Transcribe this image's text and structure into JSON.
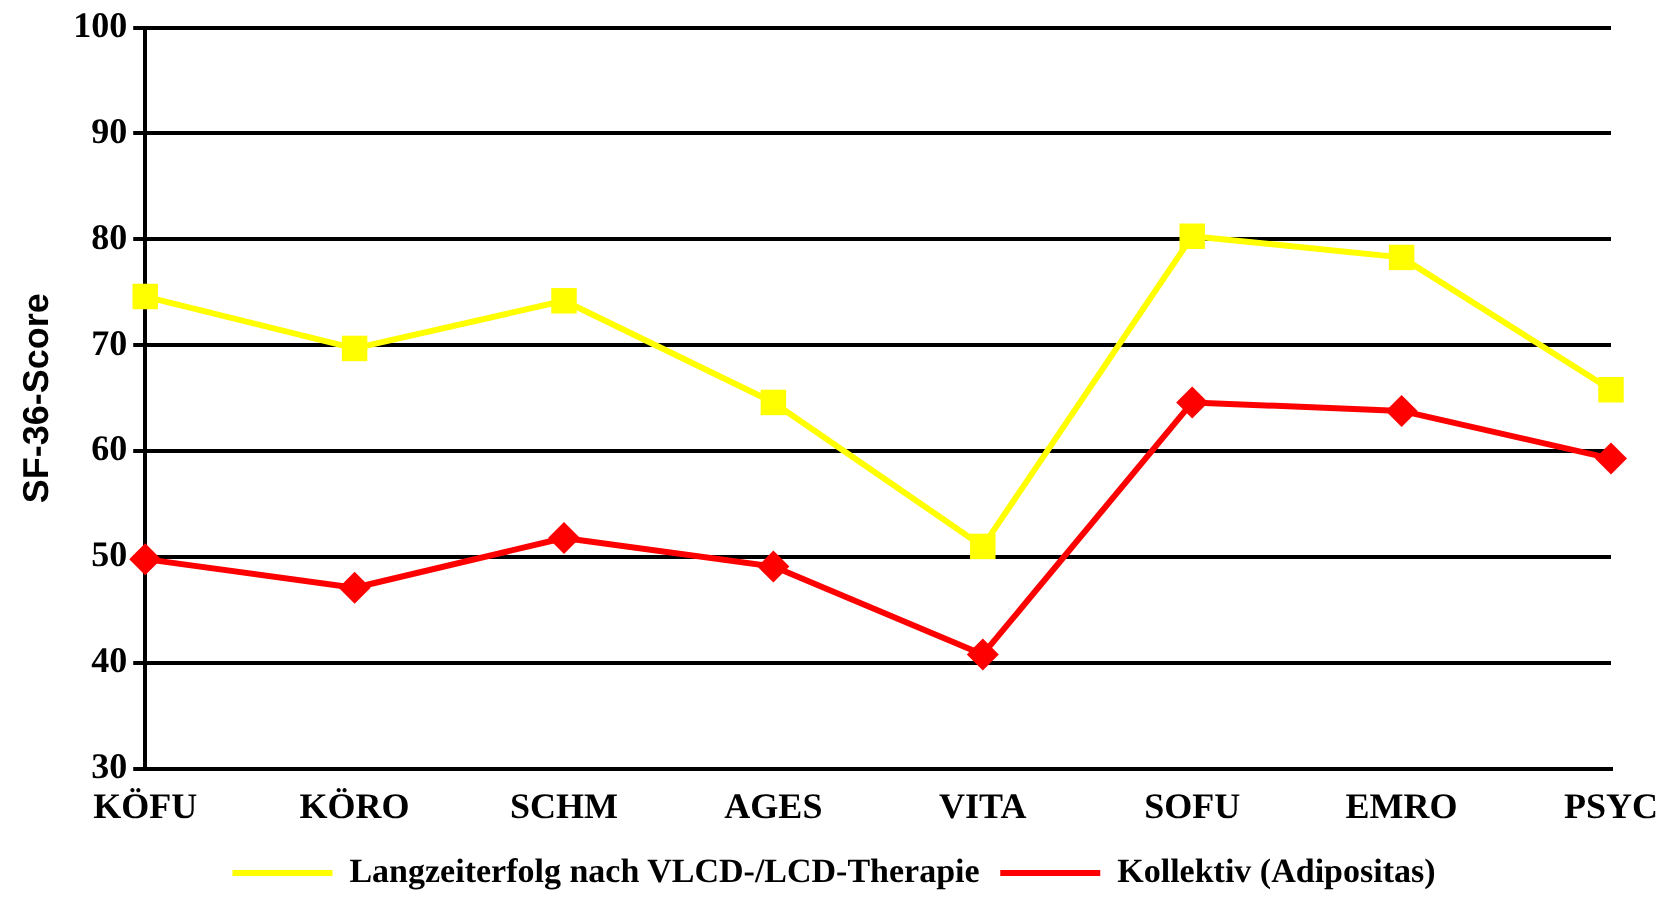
{
  "chart_data": {
    "type": "line",
    "ylabel": "SF-36-Score",
    "categories": [
      "KÖFU",
      "KÖRO",
      "SCHM",
      "AGES",
      "VITA",
      "SOFU",
      "EMRO",
      "PSYC"
    ],
    "series": [
      {
        "name": "Langzeiterfolg nach VLCD-/LCD-Therapie",
        "color": "#ffff00",
        "marker": "square",
        "values": [
          74.6,
          69.7,
          74.2,
          64.6,
          51.0,
          80.3,
          78.3,
          65.8
        ]
      },
      {
        "name": "Kollektiv (Adipositas)",
        "color": "#ff0000",
        "marker": "diamond",
        "values": [
          49.8,
          47.1,
          51.8,
          49.1,
          40.8,
          64.6,
          63.8,
          59.3
        ]
      }
    ],
    "ylim": [
      30,
      100
    ],
    "yticks": [
      30,
      40,
      50,
      60,
      70,
      80,
      90,
      100
    ],
    "grid": "y",
    "legend": "bottom",
    "line_style": "solid"
  }
}
